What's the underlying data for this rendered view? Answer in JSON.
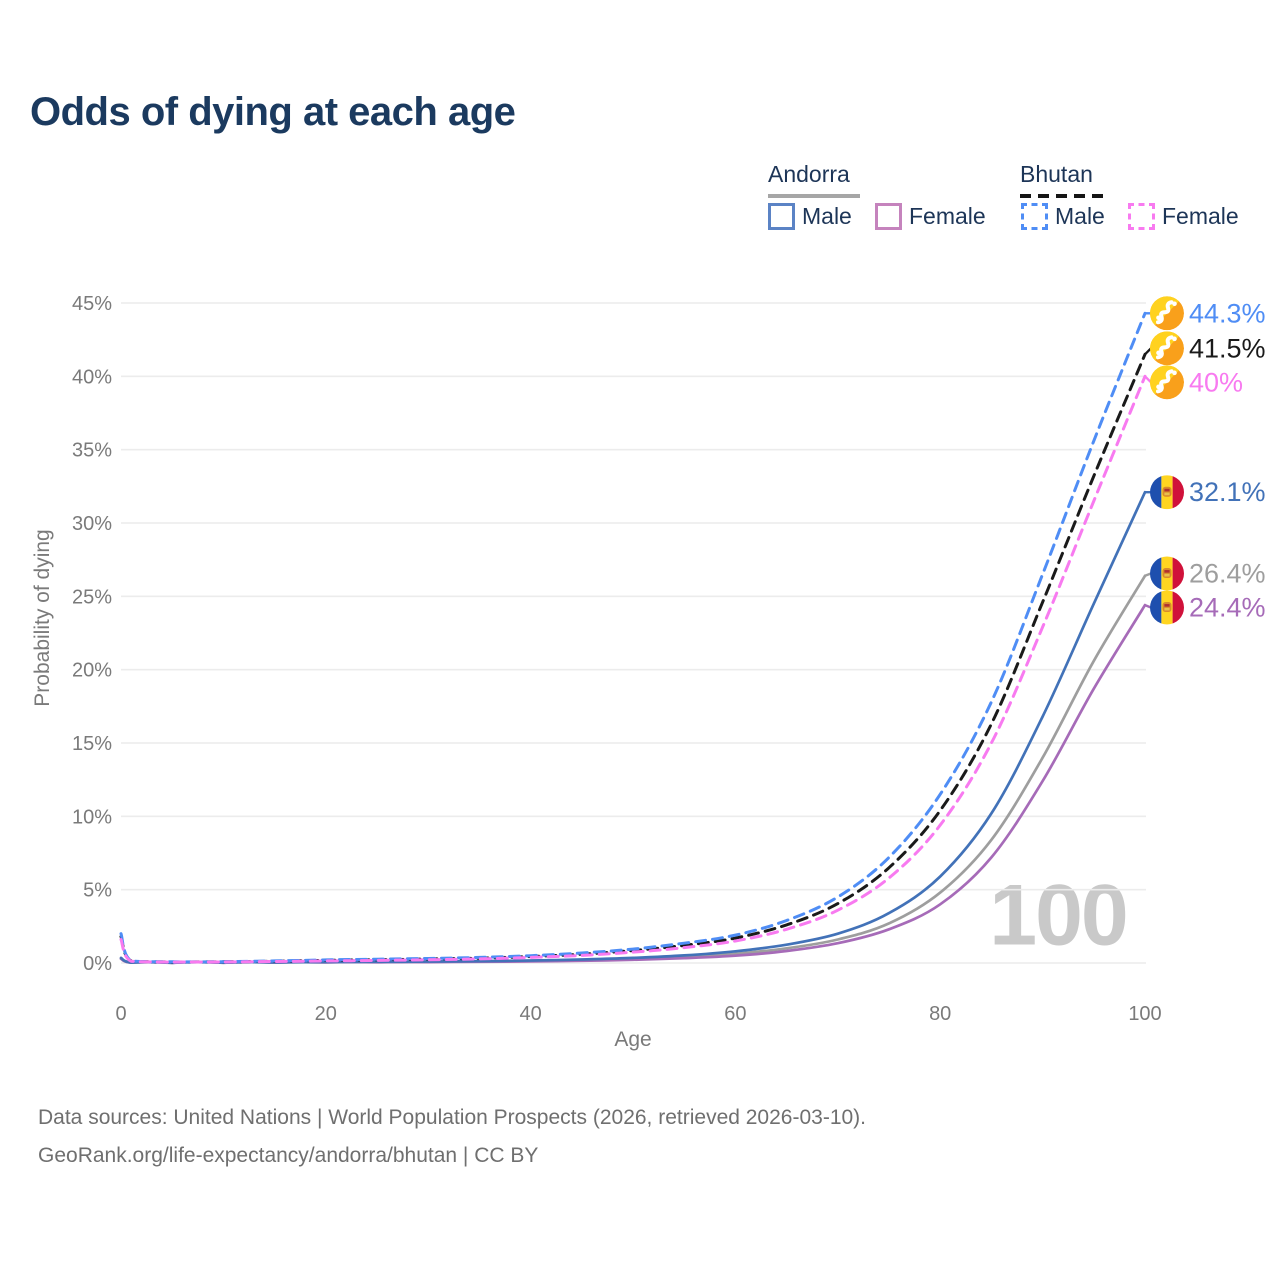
{
  "title": "Odds of dying at each age",
  "watermark": "100",
  "legend": {
    "groups": [
      {
        "name": "Andorra",
        "line_style": "solid",
        "line_color": "#a6a6a6",
        "items": [
          {
            "label": "Male",
            "color": "#5b83c5"
          },
          {
            "label": "Female",
            "color": "#c583bd"
          }
        ]
      },
      {
        "name": "Bhutan",
        "line_style": "dashed",
        "line_color": "#1a1a1a",
        "items": [
          {
            "label": "Male",
            "color": "#4f8df5"
          },
          {
            "label": "Female",
            "color": "#f87af0"
          }
        ]
      }
    ]
  },
  "footer": {
    "line1": "Data sources: United Nations | World Population Prospects (2026, retrieved 2026-03-10).",
    "line2": "GeoRank.org/life-expectancy/andorra/bhutan | CC BY"
  },
  "chart_data": {
    "type": "line",
    "title": "Odds of dying at each age",
    "xlabel": "Age",
    "ylabel": "Probability of dying",
    "xlim": [
      0,
      100
    ],
    "ylim_percent": [
      0,
      45
    ],
    "x_ticks": [
      0,
      20,
      40,
      60,
      80,
      100
    ],
    "y_ticks_percent": [
      0,
      5,
      10,
      15,
      20,
      25,
      30,
      35,
      40,
      45
    ],
    "y_tick_suffix": "%",
    "grid": "horizontal",
    "legend_position": "top-right",
    "annotation": "100",
    "ages": [
      0,
      1,
      5,
      10,
      15,
      20,
      25,
      30,
      35,
      40,
      45,
      50,
      55,
      60,
      65,
      70,
      75,
      80,
      85,
      90,
      95,
      100
    ],
    "series": [
      {
        "name": "Andorra Both sexes",
        "country": "Andorra",
        "sex": "Both",
        "color": "#9e9e9e",
        "dashed": false,
        "flag": "andorra",
        "end_label": "26.4%",
        "end_value_percent": 26.4,
        "values_percent": [
          0.3,
          0.025,
          0.012,
          0.015,
          0.03,
          0.05,
          0.06,
          0.08,
          0.1,
          0.13,
          0.19,
          0.28,
          0.42,
          0.63,
          1.0,
          1.6,
          2.7,
          4.8,
          8.4,
          14.0,
          20.6,
          26.4
        ]
      },
      {
        "name": "Andorra Female",
        "country": "Andorra",
        "sex": "Female",
        "color": "#a66bb8",
        "dashed": false,
        "flag": "andorra",
        "end_label": "24.4%",
        "end_value_percent": 24.4,
        "values_percent": [
          0.28,
          0.02,
          0.01,
          0.012,
          0.025,
          0.04,
          0.05,
          0.06,
          0.08,
          0.11,
          0.15,
          0.22,
          0.33,
          0.5,
          0.82,
          1.35,
          2.3,
          4.0,
          7.2,
          12.4,
          18.7,
          24.4
        ]
      },
      {
        "name": "Andorra Male",
        "country": "Andorra",
        "sex": "Male",
        "color": "#4272b8",
        "dashed": false,
        "flag": "andorra",
        "end_label": "32.1%",
        "end_value_percent": 32.1,
        "values_percent": [
          0.35,
          0.03,
          0.015,
          0.02,
          0.04,
          0.07,
          0.08,
          0.1,
          0.13,
          0.17,
          0.24,
          0.35,
          0.52,
          0.8,
          1.25,
          2.0,
          3.4,
          5.9,
          10.2,
          16.8,
          24.5,
          32.1
        ]
      },
      {
        "name": "Bhutan Both sexes",
        "country": "Bhutan",
        "sex": "Both",
        "color": "#1a1a1a",
        "dashed": true,
        "flag": "bhutan",
        "end_label": "41.5%",
        "end_value_percent": 41.5,
        "values_percent": [
          1.8,
          0.14,
          0.07,
          0.08,
          0.12,
          0.18,
          0.22,
          0.27,
          0.33,
          0.44,
          0.6,
          0.85,
          1.2,
          1.7,
          2.6,
          4.05,
          6.5,
          10.4,
          16.3,
          24.6,
          33.2,
          41.5
        ]
      },
      {
        "name": "Bhutan Male",
        "country": "Bhutan",
        "sex": "Male",
        "color": "#4f8df5",
        "dashed": true,
        "flag": "bhutan",
        "end_label": "44.3%",
        "end_value_percent": 44.3,
        "values_percent": [
          2.0,
          0.15,
          0.08,
          0.09,
          0.14,
          0.21,
          0.26,
          0.31,
          0.38,
          0.5,
          0.68,
          0.95,
          1.35,
          1.9,
          2.9,
          4.5,
          7.2,
          11.5,
          17.8,
          26.5,
          35.6,
          44.3
        ]
      },
      {
        "name": "Bhutan Female",
        "country": "Bhutan",
        "sex": "Female",
        "color": "#f87af0",
        "dashed": true,
        "flag": "bhutan",
        "end_label": "40%",
        "end_value_percent": 40.0,
        "values_percent": [
          1.6,
          0.12,
          0.06,
          0.07,
          0.1,
          0.14,
          0.18,
          0.22,
          0.28,
          0.38,
          0.52,
          0.74,
          1.05,
          1.5,
          2.3,
          3.6,
          5.8,
          9.4,
          15.0,
          22.9,
          31.5,
          40.0
        ]
      }
    ]
  },
  "colors": {
    "title": "#1b3a5f",
    "legend_text": "#1d3557",
    "axis_text": "#7a7a7a",
    "gridline": "#ececec",
    "watermark": "#c9c9c9",
    "footer_text": "#6f6f6f",
    "andorra_flag": {
      "blue": "#1e4fae",
      "yellow": "#ffd520",
      "red": "#d0113a",
      "emblem": "#d98a2b"
    },
    "bhutan_flag": {
      "yellow": "#ffd21f",
      "orange": "#f9a01b",
      "dragon": "#ffffff"
    }
  }
}
